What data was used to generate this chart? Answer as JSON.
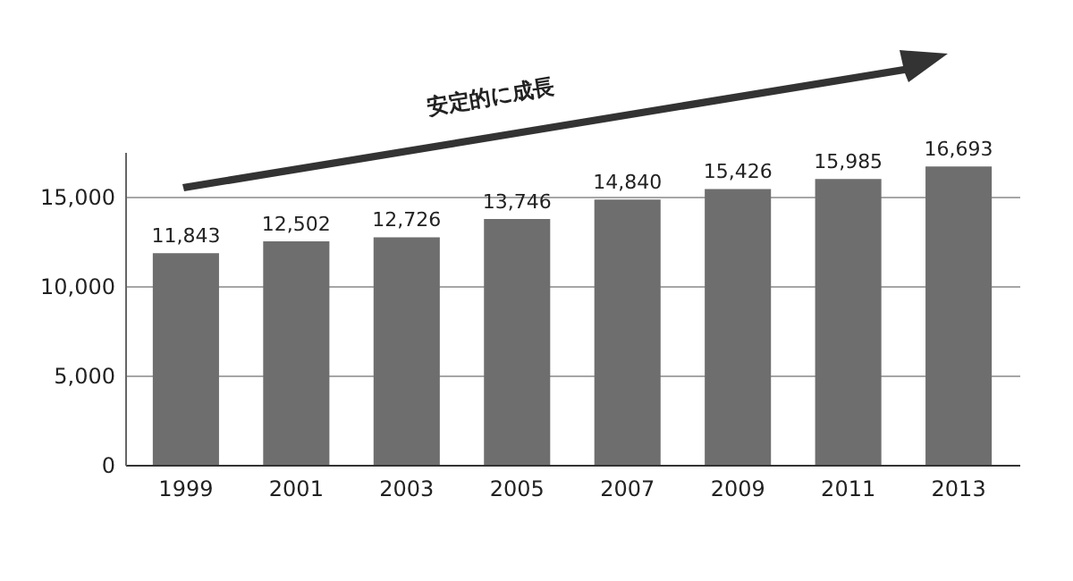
{
  "chart_data": {
    "type": "bar",
    "categories": [
      "1999",
      "2001",
      "2003",
      "2005",
      "2007",
      "2009",
      "2011",
      "2013"
    ],
    "values": [
      11843,
      12502,
      12726,
      13746,
      14840,
      15426,
      15985,
      16693
    ],
    "value_labels": [
      "11,843",
      "12,502",
      "12,726",
      "13,746",
      "14,840",
      "15,426",
      "15,985",
      "16,693"
    ],
    "color": "#6e6e6e",
    "ylim": [
      0,
      17500
    ],
    "yticks": [
      0,
      {
        "value": 5000,
        "label": "5,000"
      },
      {
        "value": 10000,
        "label": "10,000"
      },
      {
        "value": 15000,
        "label": "15,000"
      }
    ],
    "grid": "y",
    "annotations": [
      "安定的に成長"
    ]
  }
}
